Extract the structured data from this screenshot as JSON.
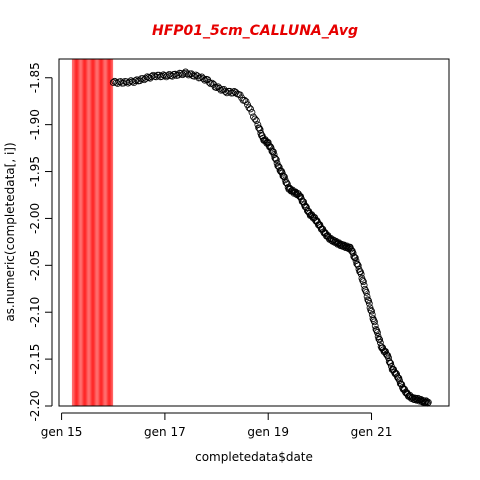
{
  "chart_data": {
    "type": "scatter",
    "title": "HFP01_5cm_CALLUNA_Avg",
    "title_color": "#e60000",
    "xlabel": "completedata$date",
    "ylabel": "as.numeric(completedata[, i])",
    "x_ticks": [
      {
        "x": 15,
        "label": "gen 15"
      },
      {
        "x": 17,
        "label": "gen 17"
      },
      {
        "x": 19,
        "label": "gen 19"
      },
      {
        "x": 21,
        "label": "gen 21"
      }
    ],
    "y_ticks": [
      -1.85,
      -1.9,
      -1.95,
      -2.0,
      -2.05,
      -2.1,
      -2.15,
      -2.2
    ],
    "y_tick_labels": [
      "-1.85",
      "-1.90",
      "-1.95",
      "-2.00",
      "-2.05",
      "-2.10",
      "-2.15",
      "-2.20"
    ],
    "xlim": [
      14.95,
      22.5
    ],
    "ylim": [
      -2.2,
      -1.83
    ],
    "highlight_band": {
      "x_start": 15.2,
      "x_end": 16.0,
      "color": "#ff3333"
    },
    "marker": "open-circle",
    "marker_color": "#000000",
    "series": [
      {
        "points": [
          [
            16.0,
            -1.855
          ],
          [
            16.2,
            -1.855
          ],
          [
            16.4,
            -1.854
          ],
          [
            16.6,
            -1.851
          ],
          [
            16.8,
            -1.848
          ],
          [
            17.0,
            -1.848
          ],
          [
            17.2,
            -1.847
          ],
          [
            17.4,
            -1.845
          ],
          [
            17.6,
            -1.848
          ],
          [
            17.8,
            -1.852
          ],
          [
            18.0,
            -1.86
          ],
          [
            18.2,
            -1.865
          ],
          [
            18.4,
            -1.866
          ],
          [
            18.6,
            -1.878
          ],
          [
            18.8,
            -1.9
          ],
          [
            18.9,
            -1.915
          ],
          [
            19.0,
            -1.92
          ],
          [
            19.1,
            -1.93
          ],
          [
            19.2,
            -1.945
          ],
          [
            19.3,
            -1.955
          ],
          [
            19.4,
            -1.968
          ],
          [
            19.5,
            -1.972
          ],
          [
            19.6,
            -1.975
          ],
          [
            19.7,
            -1.985
          ],
          [
            19.8,
            -1.995
          ],
          [
            19.9,
            -2.0
          ],
          [
            20.0,
            -2.008
          ],
          [
            20.1,
            -2.016
          ],
          [
            20.2,
            -2.022
          ],
          [
            20.3,
            -2.025
          ],
          [
            20.4,
            -2.028
          ],
          [
            20.5,
            -2.03
          ],
          [
            20.6,
            -2.032
          ],
          [
            20.7,
            -2.045
          ],
          [
            20.8,
            -2.06
          ],
          [
            20.9,
            -2.08
          ],
          [
            21.0,
            -2.1
          ],
          [
            21.1,
            -2.12
          ],
          [
            21.2,
            -2.138
          ],
          [
            21.3,
            -2.145
          ],
          [
            21.4,
            -2.16
          ],
          [
            21.5,
            -2.168
          ],
          [
            21.6,
            -2.18
          ],
          [
            21.7,
            -2.188
          ],
          [
            21.8,
            -2.192
          ],
          [
            21.9,
            -2.193
          ],
          [
            22.0,
            -2.195
          ],
          [
            22.1,
            -2.196
          ]
        ]
      }
    ]
  }
}
